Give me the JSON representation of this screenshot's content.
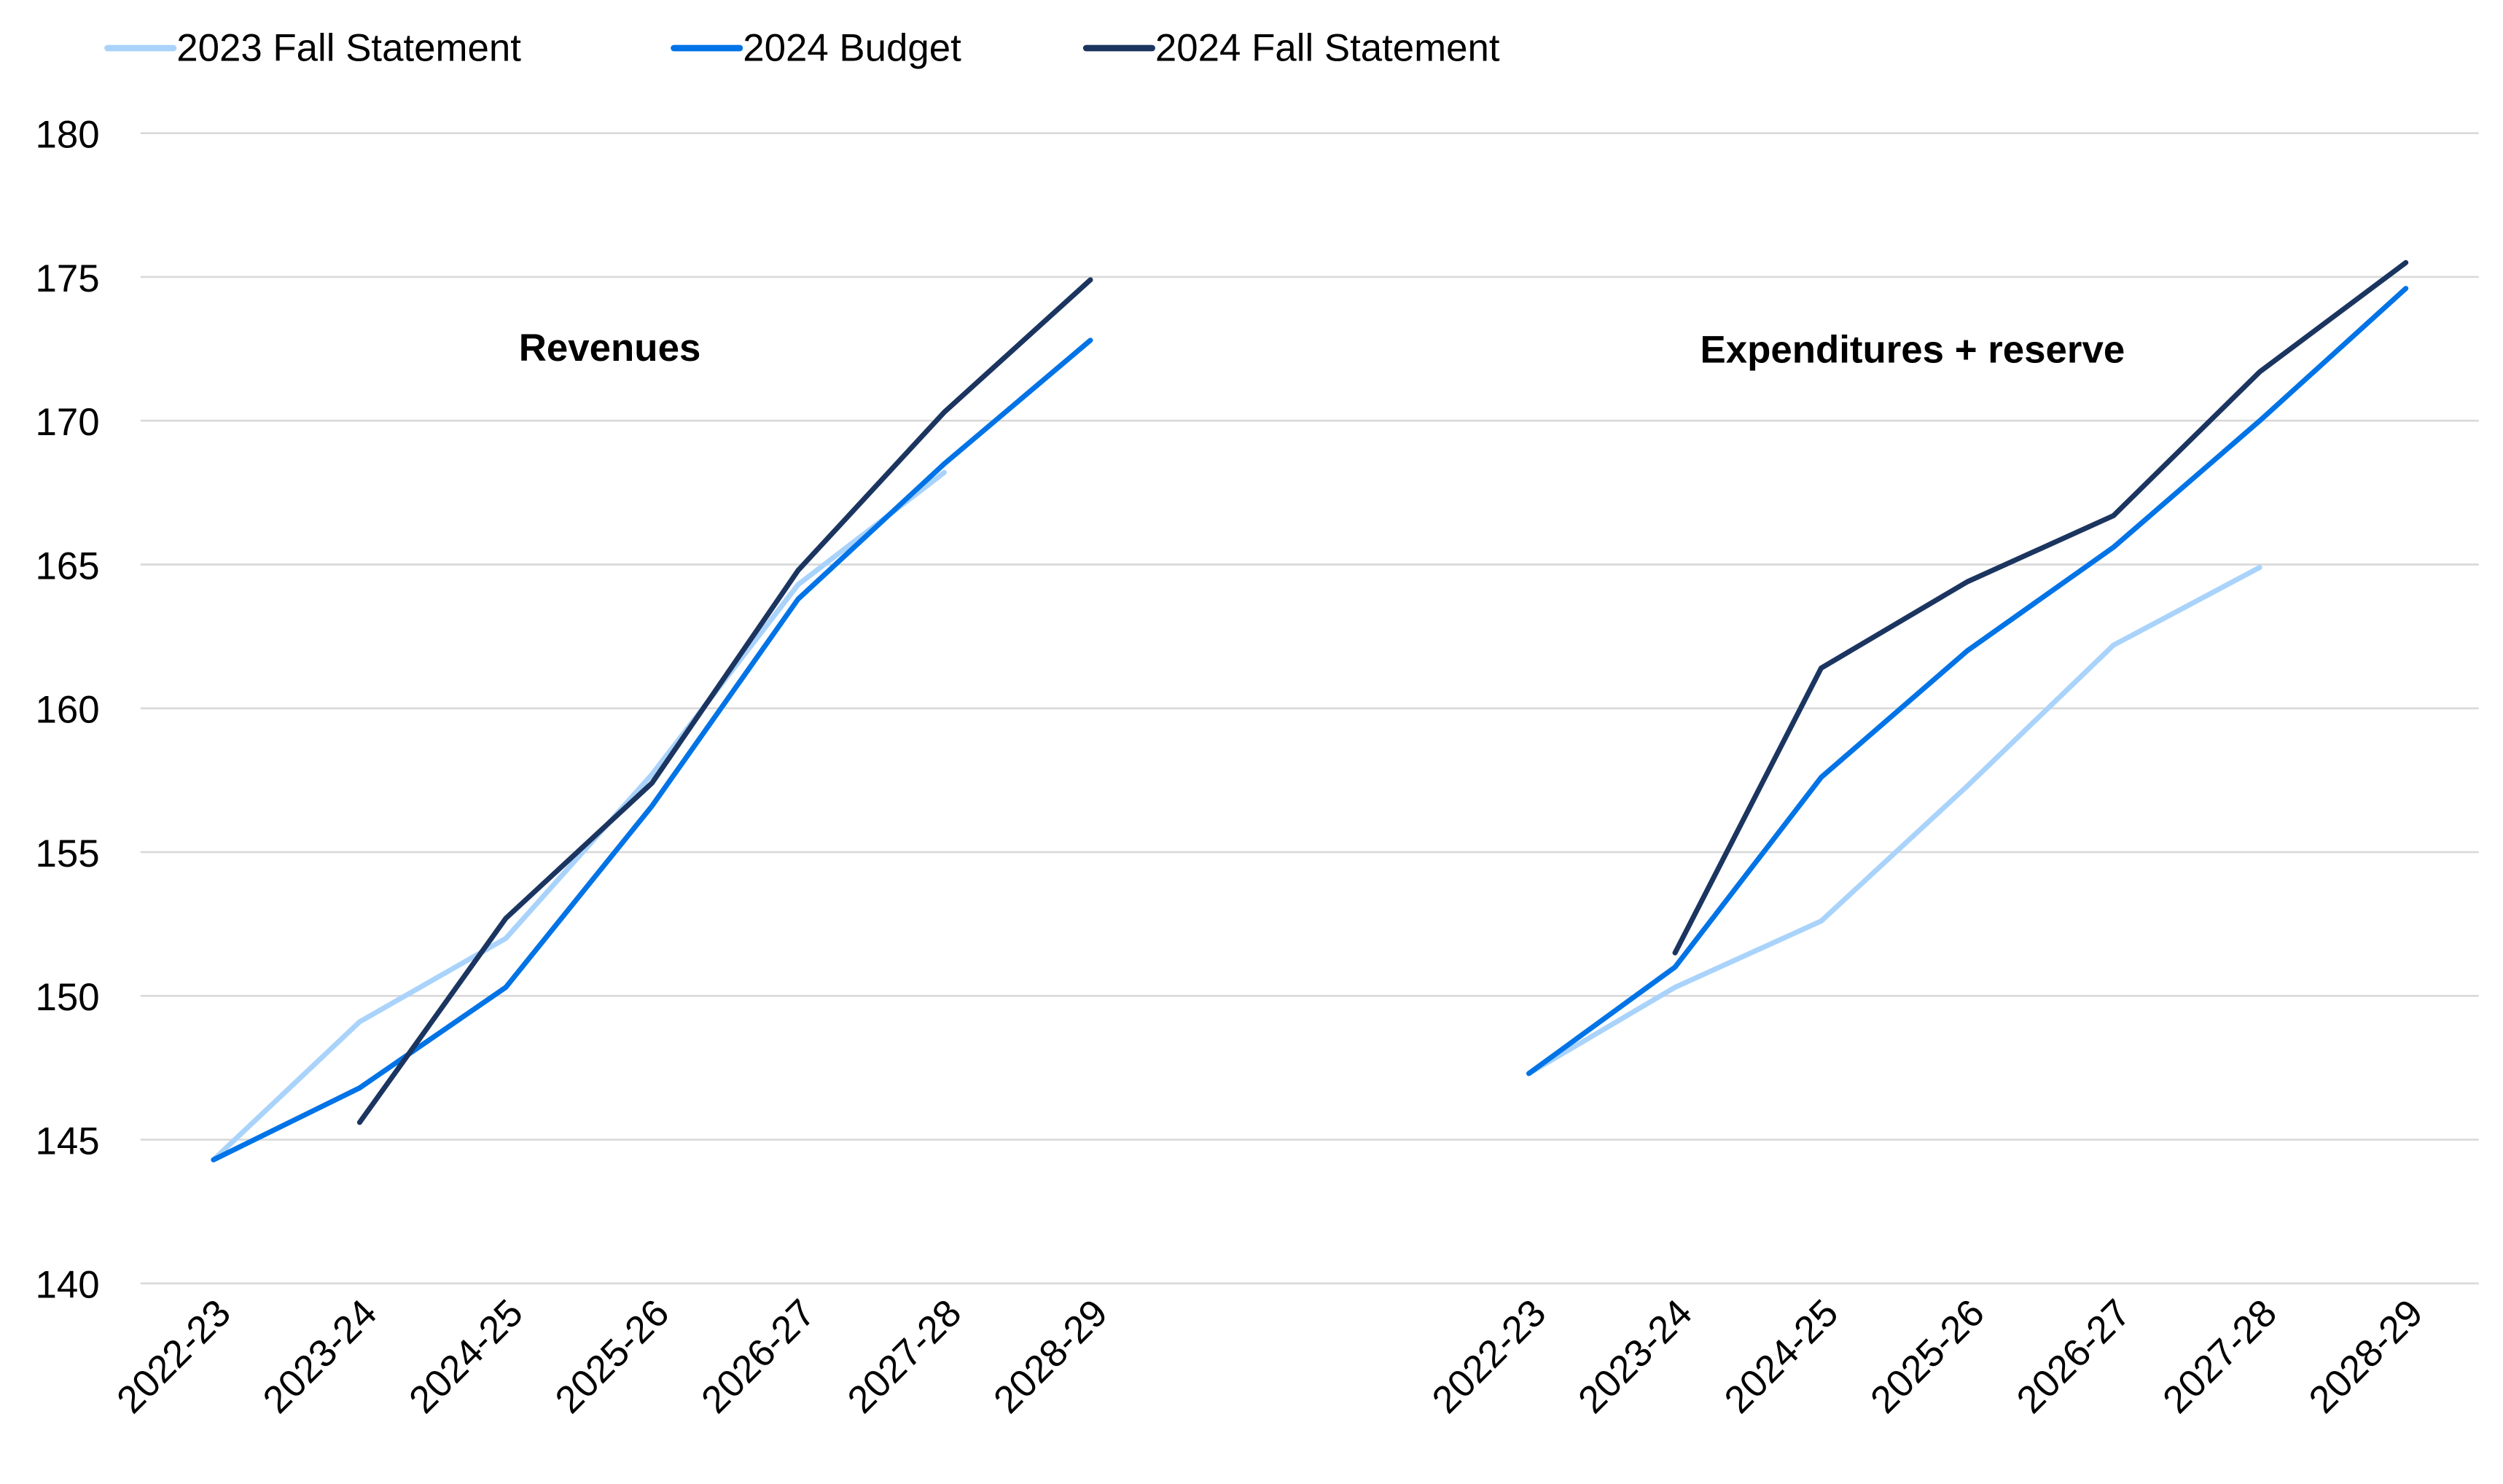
{
  "chart_data": {
    "type": "line",
    "title": "",
    "xlabel": "",
    "ylabel": "",
    "ylim": [
      140,
      180
    ],
    "yticks": [
      140,
      145,
      150,
      155,
      160,
      165,
      170,
      175,
      180
    ],
    "grid": true,
    "legend_position": "top-left",
    "categories": [
      "2022-23",
      "2023-24",
      "2024-25",
      "2025-26",
      "2026-27",
      "2027-28",
      "2028-29"
    ],
    "panels": [
      {
        "annotation": "Revenues",
        "series": [
          {
            "name": "2023 Fall Statement",
            "color": "#a9d3fb",
            "values": [
              144.3,
              149.1,
              152.0,
              157.7,
              164.3,
              168.2,
              null
            ]
          },
          {
            "name": "2024 Budget",
            "color": "#0073e6",
            "values": [
              144.3,
              146.8,
              150.3,
              156.6,
              163.8,
              168.5,
              172.8
            ]
          },
          {
            "name": "2024 Fall Statement",
            "color": "#1b3560",
            "values": [
              null,
              145.6,
              152.7,
              157.4,
              164.8,
              170.3,
              174.9
            ]
          }
        ]
      },
      {
        "annotation": "Expenditures + reserve",
        "series": [
          {
            "name": "2023 Fall Statement",
            "color": "#a9d3fb",
            "values": [
              147.3,
              150.3,
              152.6,
              157.3,
              162.2,
              164.9,
              null
            ]
          },
          {
            "name": "2024 Budget",
            "color": "#0073e6",
            "values": [
              147.3,
              151.0,
              157.6,
              162.0,
              165.6,
              170.0,
              174.6
            ]
          },
          {
            "name": "2024 Fall Statement",
            "color": "#1b3560",
            "values": [
              null,
              151.5,
              161.4,
              164.4,
              166.7,
              171.7,
              175.5
            ]
          }
        ]
      }
    ],
    "legend": [
      "2023 Fall Statement",
      "2024 Budget",
      "2024 Fall Statement"
    ]
  }
}
